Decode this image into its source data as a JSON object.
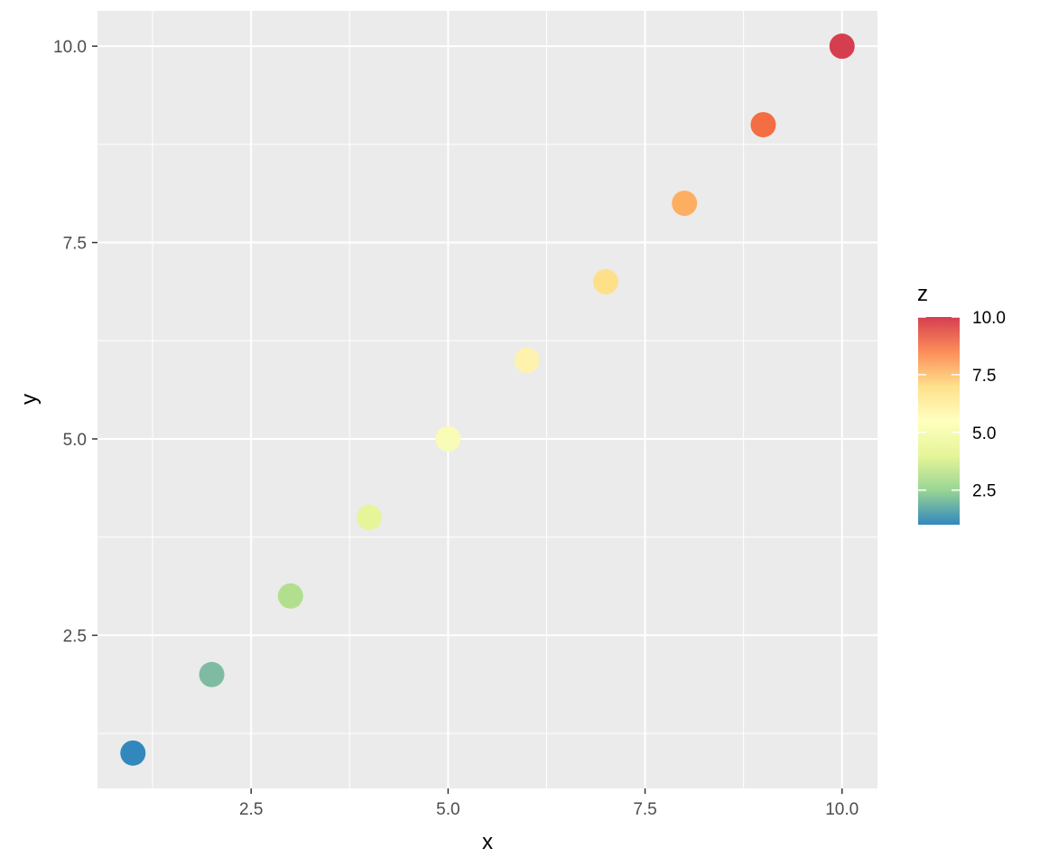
{
  "chart_data": {
    "type": "scatter",
    "title": "",
    "xlabel": "x",
    "ylabel": "y",
    "xlim": [
      0.55,
      10.45
    ],
    "ylim": [
      0.55,
      10.45
    ],
    "x_ticks": [
      2.5,
      5.0,
      7.5,
      10.0
    ],
    "x_tick_labels": [
      "2.5",
      "5.0",
      "7.5",
      "10.0"
    ],
    "y_ticks": [
      2.5,
      5.0,
      7.5,
      10.0
    ],
    "y_tick_labels": [
      "2.5",
      "5.0",
      "7.5",
      "10.0"
    ],
    "grid": true,
    "background": "#ebebeb",
    "gridline_color": "#ffffff",
    "points": [
      {
        "x": 1,
        "y": 1,
        "z": 1
      },
      {
        "x": 2,
        "y": 2,
        "z": 2
      },
      {
        "x": 3,
        "y": 3,
        "z": 3
      },
      {
        "x": 4,
        "y": 4,
        "z": 4
      },
      {
        "x": 5,
        "y": 5,
        "z": 5
      },
      {
        "x": 6,
        "y": 6,
        "z": 6
      },
      {
        "x": 7,
        "y": 7,
        "z": 7
      },
      {
        "x": 8,
        "y": 8,
        "z": 8
      },
      {
        "x": 9,
        "y": 9,
        "z": 9
      },
      {
        "x": 10,
        "y": 10,
        "z": 10
      }
    ],
    "point_colors": [
      "#3288bd",
      "#7fbba2",
      "#b2df8e",
      "#e6f598",
      "#f9fcb6",
      "#fff2ae",
      "#fee08b",
      "#fdae61",
      "#f46d43",
      "#d53e4f"
    ],
    "legend": {
      "title": "z",
      "position": "right",
      "range": [
        1,
        10
      ],
      "ticks": [
        2.5,
        5.0,
        7.5,
        10.0
      ],
      "tick_labels": [
        "2.5",
        "5.0",
        "7.5",
        "10.0"
      ],
      "gradient_stops": [
        "#3288bd",
        "#99d594",
        "#e6f598",
        "#ffffbf",
        "#fee08b",
        "#fc8d59",
        "#d53e4f"
      ]
    }
  }
}
